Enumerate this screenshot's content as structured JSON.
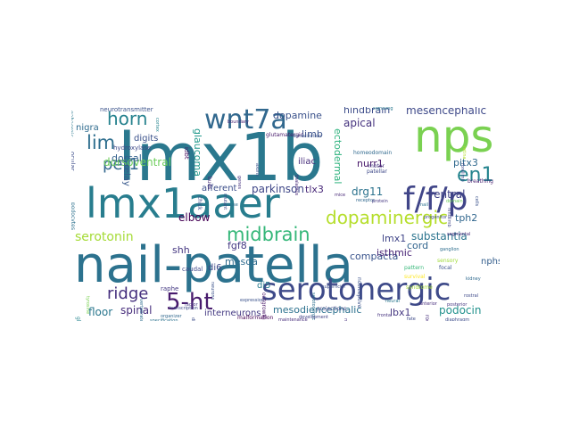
{
  "words": [
    {
      "text": "lmx1b",
      "color": "#2a788e"
    },
    {
      "text": "nail-patella",
      "color": "#2c728e"
    },
    {
      "text": "lmx1aaer",
      "color": "#287d8e"
    },
    {
      "text": "nps",
      "color": "#7ad151"
    },
    {
      "text": "serotonergic",
      "color": "#3e4a89"
    },
    {
      "text": "wnt7a",
      "color": "#31688e"
    },
    {
      "text": "f/f/p",
      "color": "#404588"
    },
    {
      "text": "en1",
      "color": "#25848e"
    },
    {
      "text": "dopaminergic",
      "color": "#b5de2b"
    },
    {
      "text": "5-ht",
      "color": "#481b6d"
    },
    {
      "text": "midbrain",
      "color": "#35b779"
    },
    {
      "text": "horn",
      "color": "#26828e"
    },
    {
      "text": "lim",
      "color": "#2e6e8e"
    },
    {
      "text": "pet1",
      "color": "#31678e"
    },
    {
      "text": "ridge",
      "color": "#46307e"
    },
    {
      "text": "serotonin",
      "color": "#a5db36"
    },
    {
      "text": "dorsoventral",
      "color": "#6ccd5a"
    },
    {
      "text": "dopamine",
      "color": "#3b528b"
    },
    {
      "text": "hindbrain",
      "color": "#3d4d8a"
    },
    {
      "text": "mesencephalic",
      "color": "#3e4989"
    },
    {
      "text": "apical",
      "color": "#46337f"
    },
    {
      "text": "parkinson",
      "color": "#3f4788"
    },
    {
      "text": "drg11",
      "color": "#2c738e"
    },
    {
      "text": "substantia",
      "color": "#2b748e"
    },
    {
      "text": "compacta",
      "color": "#3a548c"
    },
    {
      "text": "ventral",
      "color": "#414487"
    },
    {
      "text": "isthmic",
      "color": "#482475"
    },
    {
      "text": "glaucoma",
      "color": "#1f988b"
    },
    {
      "text": "ectodermal",
      "color": "#2db27d"
    },
    {
      "text": "tlx3",
      "color": "#482878"
    },
    {
      "text": "elbow",
      "color": "#440154"
    },
    {
      "text": "fgf8",
      "color": "#443983"
    },
    {
      "text": "mesda",
      "color": "#2f6c8e"
    },
    {
      "text": "shh",
      "color": "#453781"
    },
    {
      "text": "spinal",
      "color": "#472e7c"
    },
    {
      "text": "floor",
      "color": "#2a778e"
    },
    {
      "text": "interneurons",
      "color": "#443a83"
    },
    {
      "text": "mesodiencephalic",
      "color": "#2c718e"
    },
    {
      "text": "lbx1",
      "color": "#453882"
    },
    {
      "text": "podocin",
      "color": "#21918c"
    },
    {
      "text": "cord",
      "color": "#32658e"
    },
    {
      "text": "tph2",
      "color": "#31678e"
    },
    {
      "text": "nurr1",
      "color": "#48186a"
    },
    {
      "text": "pitx3",
      "color": "#30698e"
    },
    {
      "text": "dorsal",
      "color": "#34618d"
    },
    {
      "text": "digits",
      "color": "#3b528b"
    },
    {
      "text": "nigra",
      "color": "#2f6b8e"
    },
    {
      "text": "relay",
      "color": "#38598c"
    },
    {
      "text": "limb",
      "color": "#3b528b"
    },
    {
      "text": "iliac",
      "color": "#472d7b"
    },
    {
      "text": "afferent",
      "color": "#3c4f8a"
    },
    {
      "text": "di6",
      "color": "#3e4a89"
    },
    {
      "text": "di5",
      "color": "#287c8e"
    },
    {
      "text": "lmx1",
      "color": "#404588"
    },
    {
      "text": "nphs2",
      "color": "#355f8d"
    },
    {
      "text": "caudal",
      "color": "#3f4889"
    },
    {
      "text": "raphe",
      "color": "#443983"
    },
    {
      "text": "hydroxylase",
      "color": "#3e4989"
    },
    {
      "text": "neurotransmitter",
      "color": "#3b528b"
    },
    {
      "text": "gabaergic",
      "color": "#2a788e"
    },
    {
      "text": "idbt",
      "color": "#470e61"
    },
    {
      "text": "homeodomain",
      "color": "#30698e"
    },
    {
      "text": "patellar",
      "color": "#3e4989"
    },
    {
      "text": "motor",
      "color": "#453781"
    },
    {
      "text": "outgrowth",
      "color": "#481668"
    },
    {
      "text": "projections",
      "color": "#3f4788"
    },
    {
      "text": "nociceptive",
      "color": "#3b528b"
    },
    {
      "text": "breathing",
      "color": "#481f70"
    },
    {
      "text": "glutamatergic",
      "color": "#481a6c"
    },
    {
      "text": "ocular",
      "color": "#3d4d8a"
    },
    {
      "text": "podocytes",
      "color": "#2c718e"
    },
    {
      "text": "glomerular",
      "color": "#25848e"
    },
    {
      "text": "chick",
      "color": "#3e4989"
    },
    {
      "text": "buds",
      "color": "#472c7a"
    },
    {
      "text": "roof",
      "color": "#472f7d"
    },
    {
      "text": "malformation",
      "color": "#440154"
    },
    {
      "text": "morphogenesis",
      "color": "#46327e"
    },
    {
      "text": "serotonergic",
      "color": "#2d708e"
    },
    {
      "text": "sensory",
      "color": "#a0da39"
    },
    {
      "text": "focal",
      "color": "#3b528b"
    },
    {
      "text": "rostral",
      "color": "#3e4a89"
    },
    {
      "text": "vertebrate",
      "color": "#2e6e8e"
    },
    {
      "text": "superficial",
      "color": "#3d4e8a"
    },
    {
      "text": "segmental",
      "color": "#472a7a"
    },
    {
      "text": "organizer",
      "color": "#31688e"
    },
    {
      "text": "neurons",
      "color": "#3b528b"
    },
    {
      "text": "frontal",
      "color": "#46337f"
    },
    {
      "text": "mice",
      "color": "#482878"
    },
    {
      "text": "neural",
      "color": "#2a788e"
    },
    {
      "text": "mutant",
      "color": "#3e4989"
    },
    {
      "text": "development",
      "color": "#414487"
    },
    {
      "text": "expression",
      "color": "#3b528b"
    },
    {
      "text": "diaphragm",
      "color": "#3d4d8a"
    },
    {
      "text": "anterior",
      "color": "#472d7b"
    },
    {
      "text": "posterior",
      "color": "#453781"
    },
    {
      "text": "kidney",
      "color": "#30698e"
    },
    {
      "text": "nail",
      "color": "#2c718e"
    },
    {
      "text": "fate",
      "color": "#3e4a89"
    },
    {
      "text": "tyrosine",
      "color": "#7ad151"
    },
    {
      "text": "dorsalization",
      "color": "#3b528b"
    },
    {
      "text": "boundary",
      "color": "#482475"
    },
    {
      "text": "transcription",
      "color": "#3e4989"
    },
    {
      "text": "factor",
      "color": "#453882"
    },
    {
      "text": "pattern",
      "color": "#35b779"
    },
    {
      "text": "syndrome",
      "color": "#a5db36"
    },
    {
      "text": "survival",
      "color": "#fde725"
    },
    {
      "text": "ganglion",
      "color": "#2e6e8e"
    },
    {
      "text": "hindlimb",
      "color": "#404588"
    },
    {
      "text": "forelimb",
      "color": "#3e4989"
    },
    {
      "text": "retina",
      "color": "#b5de2b"
    },
    {
      "text": "cortex",
      "color": "#25848e"
    },
    {
      "text": "thalamus",
      "color": "#482878"
    },
    {
      "text": "axons",
      "color": "#3b528b"
    },
    {
      "text": "genes",
      "color": "#46337f"
    },
    {
      "text": "signaling",
      "color": "#2a788e"
    },
    {
      "text": "progenitor",
      "color": "#3e4989"
    },
    {
      "text": "specification",
      "color": "#2c728e"
    },
    {
      "text": "differentiation",
      "color": "#3d4d8a"
    },
    {
      "text": "maintenance",
      "color": "#472d7b"
    },
    {
      "text": "receptor",
      "color": "#31688e"
    },
    {
      "text": "domain",
      "color": "#6ccd5a"
    },
    {
      "text": "protein",
      "color": "#453781"
    },
    {
      "text": "cells",
      "color": "#3b528b"
    },
    {
      "text": "mouse",
      "color": "#2e6e8e"
    }
  ]
}
